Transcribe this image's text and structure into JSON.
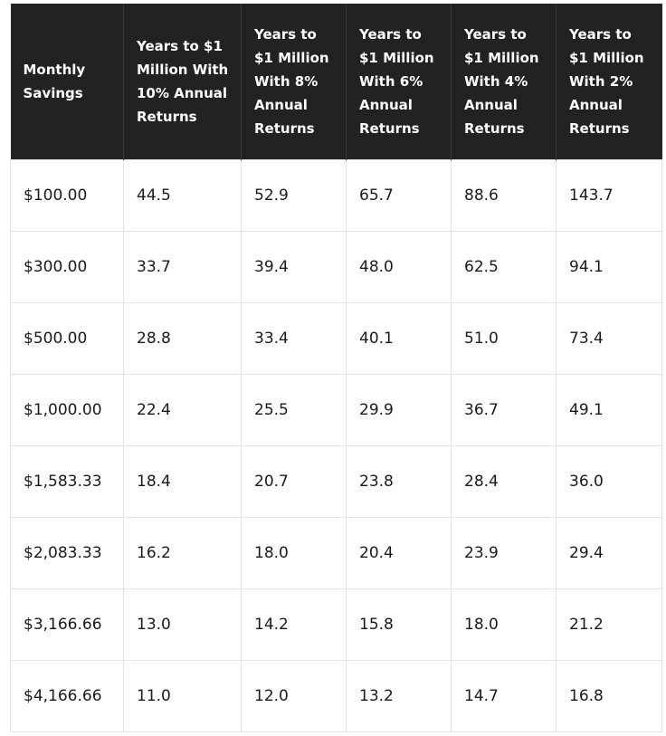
{
  "table": {
    "headers": [
      "Monthly Savings",
      "Years to $1 Million With 10% Annual Returns",
      "Years to $1 Million With 8% Annual Returns",
      "Years to $1 Million With 6% Annual Returns",
      "Years to $1 Million With 4% Annual Returns",
      "Years to $1 Million With 2% Annual Returns"
    ],
    "rows": [
      [
        "$100.00",
        "44.5",
        "52.9",
        "65.7",
        "88.6",
        "143.7"
      ],
      [
        "$300.00",
        "33.7",
        "39.4",
        "48.0",
        "62.5",
        "94.1"
      ],
      [
        "$500.00",
        "28.8",
        "33.4",
        "40.1",
        "51.0",
        "73.4"
      ],
      [
        "$1,000.00",
        "22.4",
        "25.5",
        "29.9",
        "36.7",
        "49.1"
      ],
      [
        "$1,583.33",
        "18.4",
        "20.7",
        "23.8",
        "28.4",
        "36.0"
      ],
      [
        "$2,083.33",
        "16.2",
        "18.0",
        "20.4",
        "23.9",
        "29.4"
      ],
      [
        "$3,166.66",
        "13.0",
        "14.2",
        "15.8",
        "18.0",
        "21.2"
      ],
      [
        "$4,166.66",
        "11.0",
        "12.0",
        "13.2",
        "14.7",
        "16.8"
      ]
    ]
  },
  "colors": {
    "header_background": "#222222",
    "header_text": "#ffffff",
    "cell_text": "#1a1a1a",
    "cell_border": "#e3e3e3"
  }
}
